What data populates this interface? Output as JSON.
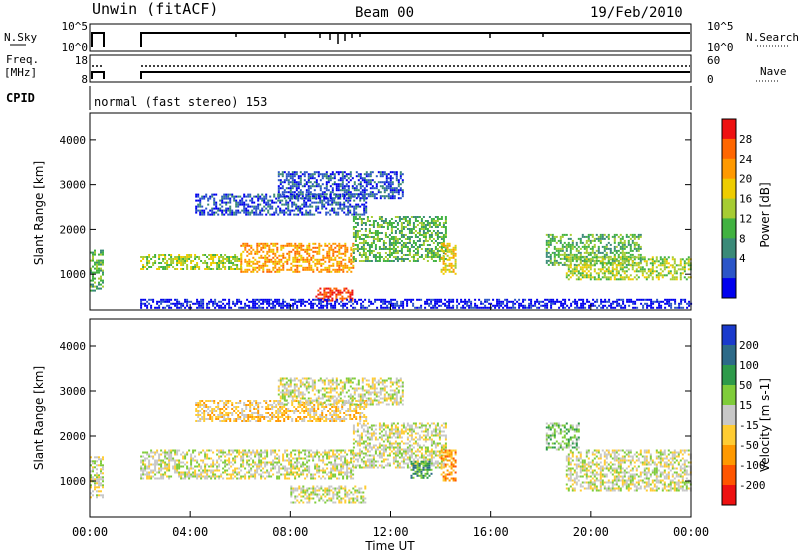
{
  "header": {
    "title": "Unwin (fitACF)",
    "beam": "Beam 00",
    "date": "19/Feb/2010"
  },
  "top_panels": {
    "nsky_label": "N.Sky",
    "nsearch_label": "N.Search",
    "noise_ticks": [
      "10^5",
      "10^0"
    ],
    "freq_label_1": "Freq.",
    "freq_label_2": "[MHz]",
    "freq_ticks": [
      "18",
      "8"
    ],
    "nave_label": "Nave",
    "nave_ticks": [
      "60",
      "0"
    ],
    "cpid_label": "CPID",
    "cpid_text": "normal (fast stereo) 153"
  },
  "x_axis": {
    "label": "Time UT",
    "ticks": [
      "00:00",
      "04:00",
      "08:00",
      "12:00",
      "16:00",
      "20:00",
      "00:00"
    ]
  },
  "chart_data": [
    {
      "type": "heatmap",
      "name": "power",
      "ylabel": "Slant Range [km]",
      "yticks": [
        1000,
        2000,
        3000,
        4000
      ],
      "ylim": [
        200,
        4600
      ],
      "xlim_hours": [
        0,
        24
      ],
      "colorbar": {
        "label": "Power [dB]",
        "ticks": [
          "4",
          "8",
          "12",
          "16",
          "20",
          "24",
          "28"
        ],
        "colors": [
          "#0000ee",
          "#2b55c8",
          "#3a8a78",
          "#41b241",
          "#a6cc33",
          "#eecc00",
          "#ff9900",
          "#ff6600",
          "#ee1111"
        ]
      },
      "echo_regions": [
        {
          "x": [
            0.0,
            0.5
          ],
          "y": [
            650,
            1550
          ],
          "level": 3
        },
        {
          "x": [
            2.0,
            6.0
          ],
          "y": [
            1100,
            1450
          ],
          "level": 4
        },
        {
          "x": [
            6.0,
            10.5
          ],
          "y": [
            1050,
            1700
          ],
          "level": 6
        },
        {
          "x": [
            10.5,
            14.2
          ],
          "y": [
            1300,
            2300
          ],
          "level": 3
        },
        {
          "x": [
            4.2,
            11.0
          ],
          "y": [
            2350,
            2800
          ],
          "level": 1
        },
        {
          "x": [
            7.5,
            12.5
          ],
          "y": [
            2700,
            3300
          ],
          "level": 1
        },
        {
          "x": [
            9.0,
            10.5
          ],
          "y": [
            400,
            700
          ],
          "level": 8
        },
        {
          "x": [
            14.0,
            14.6
          ],
          "y": [
            1000,
            1700
          ],
          "level": 5
        },
        {
          "x": [
            18.2,
            22.0
          ],
          "y": [
            1200,
            1900
          ],
          "level": 3
        },
        {
          "x": [
            19.0,
            24.0
          ],
          "y": [
            900,
            1400
          ],
          "level": 4
        },
        {
          "x": [
            2.0,
            24.0
          ],
          "y": [
            250,
            450
          ],
          "level": 0
        }
      ]
    },
    {
      "type": "heatmap",
      "name": "velocity",
      "ylabel": "Slant Range [km]",
      "yticks": [
        1000,
        2000,
        3000,
        4000
      ],
      "ylim": [
        200,
        4600
      ],
      "xlim_hours": [
        0,
        24
      ],
      "colorbar": {
        "label": "Velocity [m s-1]",
        "ticks": [
          "200",
          "100",
          "50",
          "15",
          "-15",
          "-50",
          "-100",
          "-200"
        ],
        "colors": [
          "#1a3acc",
          "#2d6a88",
          "#2e9a4a",
          "#7fcc3a",
          "#c8c8c8",
          "#ffcc33",
          "#ff9900",
          "#ff5500",
          "#ee1111"
        ]
      },
      "echo_regions": [
        {
          "x": [
            0.0,
            0.5
          ],
          "y": [
            650,
            1550
          ],
          "level": 4
        },
        {
          "x": [
            2.0,
            10.5
          ],
          "y": [
            1050,
            1700
          ],
          "level": 4
        },
        {
          "x": [
            10.5,
            14.2
          ],
          "y": [
            1300,
            2300
          ],
          "level": 4
        },
        {
          "x": [
            4.2,
            11.0
          ],
          "y": [
            2350,
            2800
          ],
          "level": 5
        },
        {
          "x": [
            7.5,
            12.5
          ],
          "y": [
            2700,
            3300
          ],
          "level": 4
        },
        {
          "x": [
            12.8,
            13.6
          ],
          "y": [
            1050,
            1450
          ],
          "level": 2
        },
        {
          "x": [
            14.0,
            14.6
          ],
          "y": [
            1000,
            1700
          ],
          "level": 6
        },
        {
          "x": [
            18.2,
            19.5
          ],
          "y": [
            1700,
            2300
          ],
          "level": 3
        },
        {
          "x": [
            19.0,
            24.0
          ],
          "y": [
            800,
            1700
          ],
          "level": 4
        },
        {
          "x": [
            8.0,
            11.0
          ],
          "y": [
            500,
            900
          ],
          "level": 4
        }
      ]
    }
  ]
}
